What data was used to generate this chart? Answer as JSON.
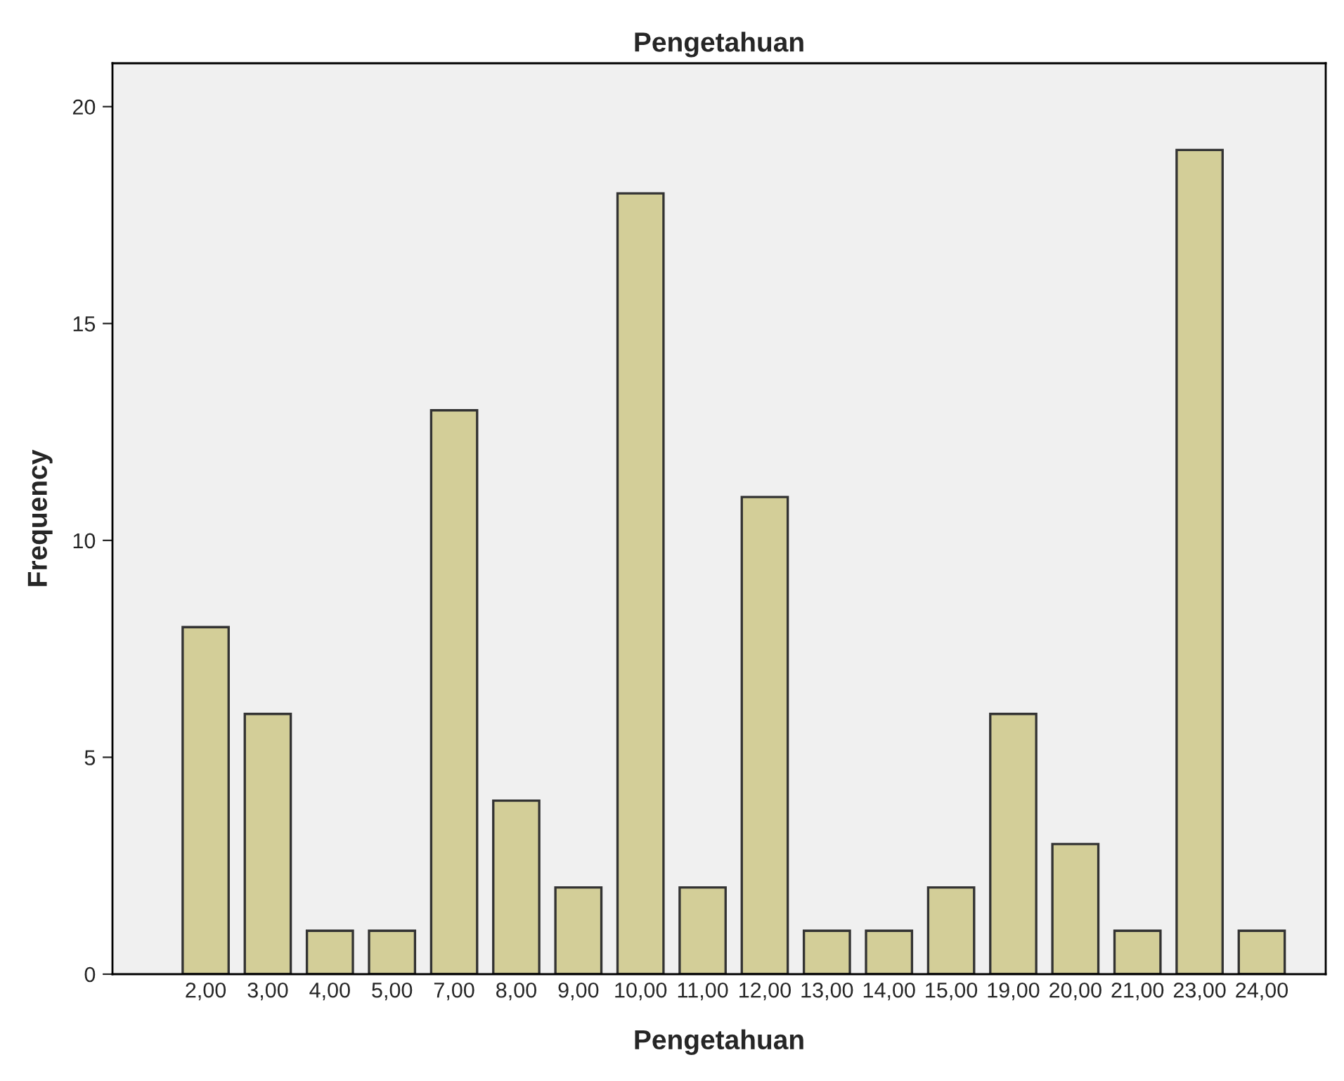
{
  "chart_data": {
    "type": "bar",
    "title": "Pengetahuan",
    "xlabel": "Pengetahuan",
    "ylabel": "Frequency",
    "categories": [
      "2,00",
      "3,00",
      "4,00",
      "5,00",
      "7,00",
      "8,00",
      "9,00",
      "10,00",
      "11,00",
      "12,00",
      "13,00",
      "14,00",
      "15,00",
      "19,00",
      "20,00",
      "21,00",
      "23,00",
      "24,00"
    ],
    "values": [
      8,
      6,
      1,
      1,
      13,
      4,
      2,
      18,
      2,
      11,
      1,
      1,
      2,
      6,
      3,
      1,
      19,
      1
    ],
    "color": "#d3ce98",
    "ylim": [
      0,
      21
    ],
    "yticks": [
      0,
      5,
      10,
      15,
      20
    ],
    "grid": false
  }
}
